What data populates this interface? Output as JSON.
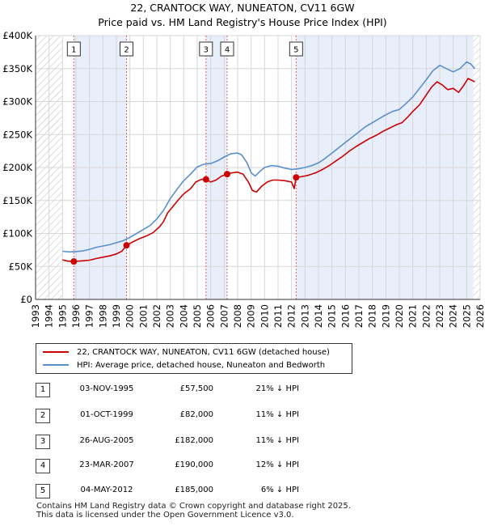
{
  "title_line1": "22, CRANTOCK WAY, NUNEATON, CV11 6GW",
  "title_line2": "Price paid vs. HM Land Registry's House Price Index (HPI)",
  "colors": {
    "property": "#cc0000",
    "hpi": "#5b8fcc",
    "band": "#e8eefa",
    "grid": "#d7d7d7",
    "hatch": "#bbbbbb",
    "vline": "#e06060"
  },
  "chart_data": {
    "type": "line",
    "xlim": [
      1993,
      2026
    ],
    "ylim": [
      0,
      400000
    ],
    "x_ticks": [
      "1993",
      "1994",
      "1995",
      "1996",
      "1997",
      "1998",
      "1999",
      "2000",
      "2001",
      "2002",
      "2003",
      "2004",
      "2005",
      "2006",
      "2007",
      "2008",
      "2009",
      "2010",
      "2011",
      "2012",
      "2013",
      "2014",
      "2015",
      "2016",
      "2017",
      "2018",
      "2019",
      "2020",
      "2021",
      "2022",
      "2023",
      "2024",
      "2025",
      "2026"
    ],
    "y_ticks": [
      {
        "value": 0,
        "label": "£0"
      },
      {
        "value": 50000,
        "label": "£50K"
      },
      {
        "value": 100000,
        "label": "£100K"
      },
      {
        "value": 150000,
        "label": "£150K"
      },
      {
        "value": 200000,
        "label": "£200K"
      },
      {
        "value": 250000,
        "label": "£250K"
      },
      {
        "value": 300000,
        "label": "£300K"
      },
      {
        "value": 350000,
        "label": "£350K"
      },
      {
        "value": 400000,
        "label": "£400K"
      }
    ],
    "hatched_before": 1995.0,
    "hatched_after": 2025.5,
    "shaded_bands": [
      [
        1995.84,
        1999.75
      ],
      [
        2005.65,
        2007.22
      ],
      [
        2012.34,
        2025.5
      ]
    ],
    "series": [
      {
        "name": "22, CRANTOCK WAY, NUNEATON, CV11 6GW (detached house)",
        "color": "#cc0000",
        "points": [
          [
            1995.0,
            60000
          ],
          [
            1995.4,
            58000
          ],
          [
            1995.84,
            57500
          ],
          [
            1996.5,
            58500
          ],
          [
            1997.0,
            59500
          ],
          [
            1997.5,
            62000
          ],
          [
            1998.0,
            64000
          ],
          [
            1998.5,
            66000
          ],
          [
            1999.0,
            69000
          ],
          [
            1999.4,
            73000
          ],
          [
            1999.75,
            82000
          ],
          [
            2000.2,
            87000
          ],
          [
            2000.7,
            92000
          ],
          [
            2001.2,
            96000
          ],
          [
            2001.7,
            101000
          ],
          [
            2002.2,
            110000
          ],
          [
            2002.5,
            118000
          ],
          [
            2002.8,
            131000
          ],
          [
            2003.2,
            141000
          ],
          [
            2003.6,
            151000
          ],
          [
            2004.0,
            160000
          ],
          [
            2004.5,
            168000
          ],
          [
            2004.9,
            178000
          ],
          [
            2005.3,
            182000
          ],
          [
            2005.65,
            182000
          ],
          [
            2006.0,
            178000
          ],
          [
            2006.4,
            181000
          ],
          [
            2006.8,
            187000
          ],
          [
            2007.22,
            190000
          ],
          [
            2007.6,
            192000
          ],
          [
            2008.0,
            193000
          ],
          [
            2008.4,
            190000
          ],
          [
            2008.8,
            178000
          ],
          [
            2009.1,
            165000
          ],
          [
            2009.4,
            163000
          ],
          [
            2009.8,
            172000
          ],
          [
            2010.2,
            178000
          ],
          [
            2010.6,
            181000
          ],
          [
            2011.0,
            181000
          ],
          [
            2011.5,
            180000
          ],
          [
            2012.0,
            178000
          ],
          [
            2012.2,
            168000
          ],
          [
            2012.34,
            185000
          ],
          [
            2012.7,
            186000
          ],
          [
            2013.2,
            188000
          ],
          [
            2013.8,
            192000
          ],
          [
            2014.3,
            197000
          ],
          [
            2014.8,
            203000
          ],
          [
            2015.3,
            210000
          ],
          [
            2015.8,
            217000
          ],
          [
            2016.3,
            225000
          ],
          [
            2016.8,
            232000
          ],
          [
            2017.3,
            238000
          ],
          [
            2017.8,
            244000
          ],
          [
            2018.3,
            249000
          ],
          [
            2018.8,
            255000
          ],
          [
            2019.3,
            260000
          ],
          [
            2019.8,
            265000
          ],
          [
            2020.2,
            268000
          ],
          [
            2020.6,
            276000
          ],
          [
            2021.0,
            285000
          ],
          [
            2021.5,
            295000
          ],
          [
            2022.0,
            310000
          ],
          [
            2022.4,
            322000
          ],
          [
            2022.8,
            330000
          ],
          [
            2023.2,
            325000
          ],
          [
            2023.6,
            318000
          ],
          [
            2024.0,
            320000
          ],
          [
            2024.4,
            314000
          ],
          [
            2024.8,
            325000
          ],
          [
            2025.1,
            335000
          ],
          [
            2025.4,
            332000
          ],
          [
            2025.6,
            330000
          ]
        ]
      },
      {
        "name": "HPI: Average price, detached house, Nuneaton and Bedworth",
        "color": "#5b8fcc",
        "points": [
          [
            1995.0,
            73000
          ],
          [
            1995.5,
            72000
          ],
          [
            1996.0,
            72500
          ],
          [
            1996.5,
            73500
          ],
          [
            1997.0,
            76000
          ],
          [
            1997.5,
            79000
          ],
          [
            1998.0,
            81000
          ],
          [
            1998.5,
            83000
          ],
          [
            1999.0,
            86000
          ],
          [
            1999.5,
            89000
          ],
          [
            2000.0,
            94000
          ],
          [
            2000.5,
            100000
          ],
          [
            2001.0,
            106000
          ],
          [
            2001.5,
            112000
          ],
          [
            2002.0,
            122000
          ],
          [
            2002.5,
            135000
          ],
          [
            2003.0,
            153000
          ],
          [
            2003.5,
            167000
          ],
          [
            2004.0,
            180000
          ],
          [
            2004.5,
            190000
          ],
          [
            2005.0,
            201000
          ],
          [
            2005.5,
            205000
          ],
          [
            2006.0,
            206000
          ],
          [
            2006.5,
            210000
          ],
          [
            2007.0,
            216000
          ],
          [
            2007.5,
            221000
          ],
          [
            2008.0,
            222000
          ],
          [
            2008.3,
            219000
          ],
          [
            2008.7,
            207000
          ],
          [
            2009.0,
            192000
          ],
          [
            2009.3,
            187000
          ],
          [
            2009.7,
            195000
          ],
          [
            2010.0,
            200000
          ],
          [
            2010.5,
            203000
          ],
          [
            2011.0,
            202000
          ],
          [
            2011.5,
            199000
          ],
          [
            2012.0,
            197000
          ],
          [
            2012.5,
            198000
          ],
          [
            2013.0,
            200000
          ],
          [
            2013.5,
            203000
          ],
          [
            2014.0,
            207000
          ],
          [
            2014.5,
            214000
          ],
          [
            2015.0,
            222000
          ],
          [
            2015.5,
            230000
          ],
          [
            2016.0,
            238000
          ],
          [
            2016.5,
            246000
          ],
          [
            2017.0,
            254000
          ],
          [
            2017.5,
            262000
          ],
          [
            2018.0,
            268000
          ],
          [
            2018.5,
            274000
          ],
          [
            2019.0,
            280000
          ],
          [
            2019.5,
            285000
          ],
          [
            2020.0,
            288000
          ],
          [
            2020.5,
            297000
          ],
          [
            2021.0,
            307000
          ],
          [
            2021.5,
            320000
          ],
          [
            2022.0,
            333000
          ],
          [
            2022.5,
            347000
          ],
          [
            2023.0,
            355000
          ],
          [
            2023.5,
            350000
          ],
          [
            2024.0,
            345000
          ],
          [
            2024.5,
            350000
          ],
          [
            2025.0,
            360000
          ],
          [
            2025.3,
            357000
          ],
          [
            2025.6,
            350000
          ]
        ]
      }
    ],
    "sale_markers": [
      {
        "label": "1",
        "x": 1995.84,
        "y": 57500
      },
      {
        "label": "2",
        "x": 1999.75,
        "y": 82000
      },
      {
        "label": "3",
        "x": 2005.65,
        "y": 182000
      },
      {
        "label": "4",
        "x": 2007.22,
        "y": 190000
      },
      {
        "label": "5",
        "x": 2012.34,
        "y": 185000
      }
    ]
  },
  "legend": {
    "property_label": "22, CRANTOCK WAY, NUNEATON, CV11 6GW (detached house)",
    "hpi_label": "HPI: Average price, detached house, Nuneaton and Bedworth"
  },
  "sales": [
    {
      "num": "1",
      "date": "03-NOV-1995",
      "price": "£57,500",
      "hpi": "21% ↓ HPI"
    },
    {
      "num": "2",
      "date": "01-OCT-1999",
      "price": "£82,000",
      "hpi": "11% ↓ HPI"
    },
    {
      "num": "3",
      "date": "26-AUG-2005",
      "price": "£182,000",
      "hpi": "11% ↓ HPI"
    },
    {
      "num": "4",
      "date": "23-MAR-2007",
      "price": "£190,000",
      "hpi": "12% ↓ HPI"
    },
    {
      "num": "5",
      "date": "04-MAY-2012",
      "price": "£185,000",
      "hpi": "6% ↓ HPI"
    }
  ],
  "footer": {
    "line1": "Contains HM Land Registry data © Crown copyright and database right 2025.",
    "line2": "This data is licensed under the Open Government Licence v3.0."
  }
}
